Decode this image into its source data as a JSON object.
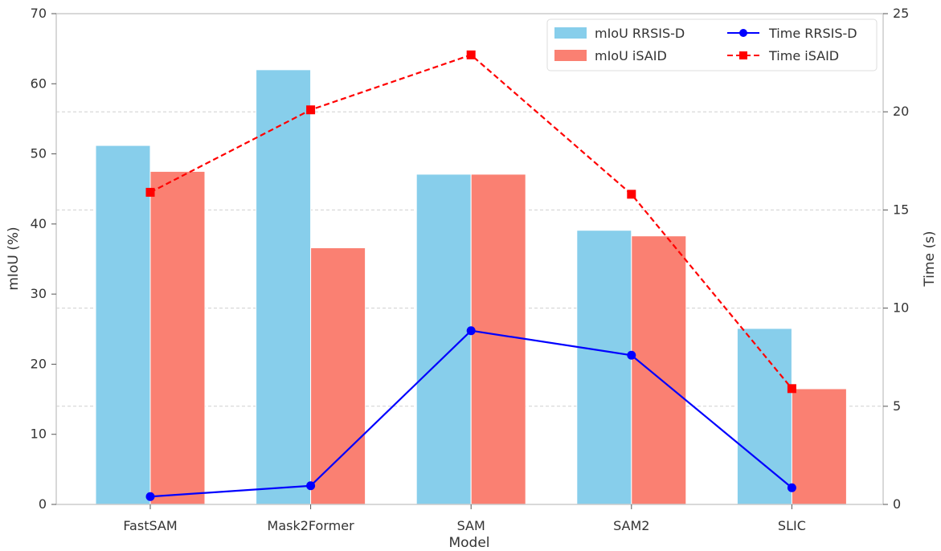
{
  "chart_data": {
    "type": "bar",
    "title": "",
    "xlabel": "Model",
    "ylabel": "mIoU (%)",
    "y2label": "Time (s)",
    "categories": [
      "FastSAM",
      "Mask2Former",
      "SAM",
      "SAM2",
      "SLIC"
    ],
    "ylim": [
      0,
      70
    ],
    "y2lim": [
      0,
      25
    ],
    "yticks": [
      "0",
      "10",
      "20",
      "30",
      "40",
      "50",
      "60",
      "70"
    ],
    "y2ticks": [
      "0",
      "5",
      "10",
      "15",
      "20",
      "25"
    ],
    "grid": true,
    "legend": "top-right",
    "bar_series": [
      {
        "name": "mIoU RRSIS-D",
        "color": "#87ceeb",
        "values": [
          51.2,
          62.0,
          47.1,
          39.1,
          25.1
        ]
      },
      {
        "name": "mIoU iSAID",
        "color": "#fa8072",
        "values": [
          47.5,
          36.6,
          47.1,
          38.3,
          16.5
        ]
      }
    ],
    "line_series": [
      {
        "name": "Time RRSIS-D",
        "color": "#0000ff",
        "marker": "circle",
        "linestyle": "solid",
        "values": [
          0.4,
          0.95,
          8.85,
          7.6,
          0.85
        ]
      },
      {
        "name": "Time iSAID",
        "color": "#ff0000",
        "marker": "square",
        "linestyle": "dashed",
        "values": [
          15.9,
          20.1,
          22.9,
          15.8,
          5.9
        ]
      }
    ]
  }
}
